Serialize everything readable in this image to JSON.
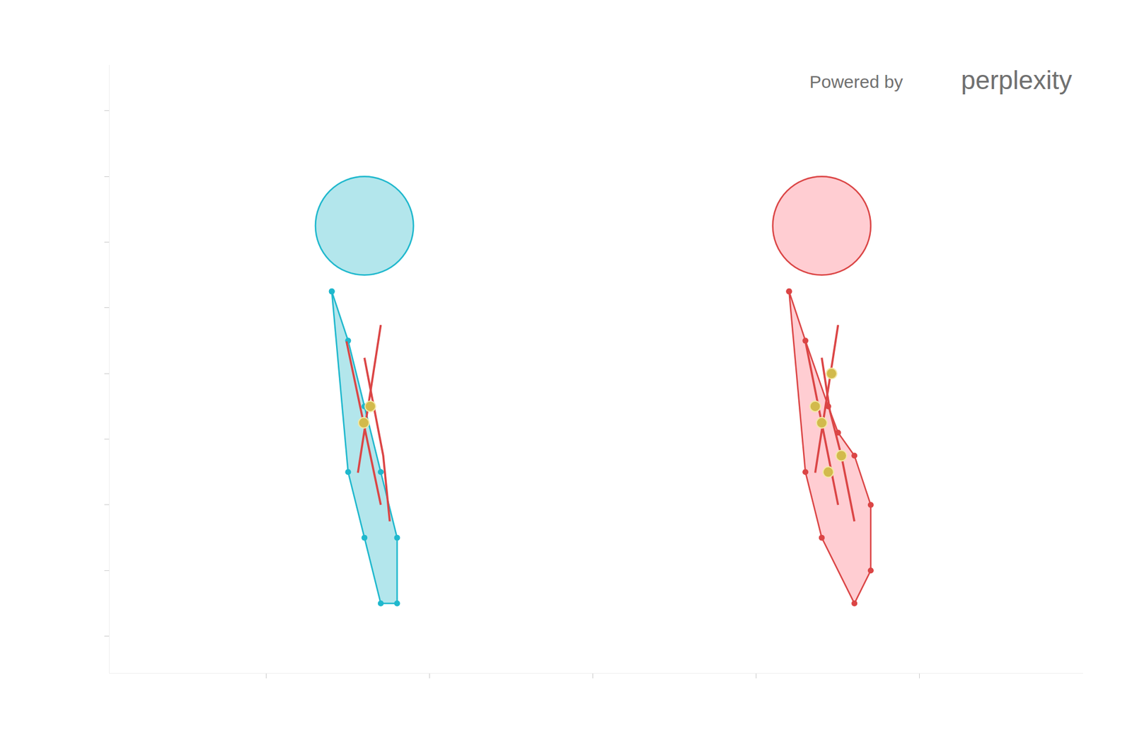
{
  "chart_data": {
    "type": "scatter",
    "xlim": [
      -0.96,
      5
    ],
    "ylim": [
      -0.56,
      8.7
    ],
    "xticks": [
      0,
      1,
      2,
      3,
      4
    ],
    "yticks": [
      0,
      1,
      2,
      3,
      4,
      5,
      6,
      7,
      8
    ],
    "tick_labels": false,
    "grid": false,
    "watermark": {
      "prefix": "Powered by",
      "brand": "perplexity"
    },
    "figures": [
      {
        "color": "#1fb8cd",
        "fill": "#b3e6ec",
        "head": {
          "x": 0.6,
          "y": 6.25,
          "rx": 0.3,
          "ry": 0.75
        },
        "body": {
          "x": [
            0.4,
            0.5,
            0.6,
            0.7,
            0.8,
            0.8,
            0.7,
            0.6,
            0.5
          ],
          "y": [
            5.25,
            2.5,
            1.5,
            0.5,
            0.5,
            1.5,
            2.5,
            3.5,
            4.5
          ]
        },
        "lines": [
          {
            "color": "#db4545",
            "x": [
              0.7,
              0.56
            ],
            "y": [
              4.74,
              2.49
            ]
          },
          {
            "color": "#db4545",
            "x": [
              0.49,
              0.7
            ],
            "y": [
              4.49,
              2.0
            ]
          },
          {
            "color": "#db4545",
            "x": [
              0.6,
              0.715,
              0.755
            ],
            "y": [
              4.24,
              2.75,
              1.75
            ]
          }
        ],
        "points": {
          "color": "#d2ba4c",
          "x": [
            0.636,
            0.596
          ],
          "y": [
            3.5,
            3.25
          ]
        }
      },
      {
        "color": "#db4545",
        "fill": "#ffcdd2",
        "head": {
          "x": 3.4,
          "y": 6.25,
          "rx": 0.3,
          "ry": 0.75
        },
        "body": {
          "x": [
            3.2,
            3.3,
            3.4,
            3.6,
            3.7,
            3.7,
            3.6,
            3.5,
            3.44,
            3.3
          ],
          "y": [
            5.25,
            2.5,
            1.5,
            0.5,
            1.0,
            2.0,
            2.75,
            3.1,
            3.5,
            4.5
          ]
        },
        "lines": [
          {
            "color": "#db4545",
            "x": [
              3.5,
              3.36
            ],
            "y": [
              4.74,
              2.49
            ]
          },
          {
            "color": "#db4545",
            "x": [
              3.3,
              3.5
            ],
            "y": [
              4.49,
              2.0
            ]
          },
          {
            "color": "#db4545",
            "x": [
              3.4,
              3.45,
              3.52,
              3.6
            ],
            "y": [
              4.24,
              3.43,
              2.75,
              1.75
            ]
          }
        ],
        "points": {
          "color": "#d2ba4c",
          "x": [
            3.46,
            3.36,
            3.4,
            3.52,
            3.44
          ],
          "y": [
            4.0,
            3.5,
            3.25,
            2.75,
            2.5
          ]
        }
      }
    ]
  }
}
